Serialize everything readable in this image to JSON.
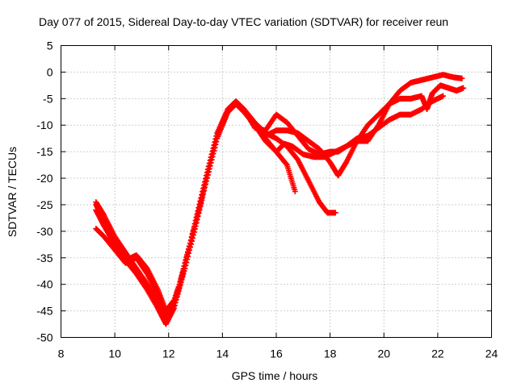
{
  "chart_data": {
    "type": "scatter",
    "title": "Day 077 of 2015, Sidereal Day-to-day VTEC variation (SDTVAR) for receiver reun",
    "xlabel": "GPS time / hours",
    "ylabel": "SDTVAR / TECUs",
    "xlim": [
      8,
      24
    ],
    "ylim": [
      -50,
      5
    ],
    "xticks": [
      8,
      10,
      12,
      14,
      16,
      18,
      20,
      22,
      24
    ],
    "yticks": [
      5,
      0,
      -5,
      -10,
      -15,
      -20,
      -25,
      -30,
      -35,
      -40,
      -45,
      -50
    ],
    "grid": true,
    "marker": "+",
    "color": "#ff0000",
    "series": [
      {
        "x": [
          9.3,
          9.6,
          10.0,
          10.4,
          10.8,
          11.2,
          11.6,
          11.9,
          12.2,
          12.6,
          13.0,
          13.4,
          13.8,
          14.2,
          14.5,
          14.8,
          15.2,
          15.6,
          16.0,
          16.4,
          16.7
        ],
        "y": [
          -24.5,
          -27,
          -31,
          -34,
          -37,
          -40,
          -43,
          -46.5,
          -44,
          -37,
          -29,
          -20,
          -12,
          -7.5,
          -6,
          -7,
          -10,
          -12.5,
          -15,
          -17.5,
          -22.5
        ]
      },
      {
        "x": [
          9.3,
          9.6,
          10.0,
          10.4,
          10.8,
          11.2,
          11.6,
          11.9,
          12.2,
          12.6,
          13.0,
          13.4,
          13.8,
          14.2,
          14.5,
          14.8,
          15.2,
          15.6,
          16.0,
          16.4,
          16.8,
          17.2,
          17.6,
          17.9,
          18.2
        ],
        "y": [
          -26,
          -29,
          -32.5,
          -35.5,
          -38,
          -41,
          -44.5,
          -47.5,
          -44.5,
          -37,
          -29,
          -20.5,
          -12.5,
          -7.5,
          -6,
          -7,
          -9.5,
          -11.5,
          -12.5,
          -14,
          -16.5,
          -20.5,
          -24.5,
          -26.5,
          -26.5
        ]
      },
      {
        "x": [
          9.3,
          9.6,
          10.0,
          10.4,
          10.8,
          11.2,
          11.6,
          11.9,
          12.2,
          12.6,
          13.0,
          13.4,
          13.8,
          14.2,
          14.5,
          14.8,
          15.2,
          15.6,
          16.0,
          16.3,
          16.6,
          17.0,
          17.4,
          17.8,
          18.2,
          18.6,
          19.0,
          19.4,
          19.8,
          20.2,
          20.6,
          21.0,
          21.4,
          21.8,
          22.2,
          22.6,
          22.9
        ],
        "y": [
          -25,
          -28,
          -32,
          -34.5,
          -37,
          -40,
          -43.5,
          -46.5,
          -44,
          -36,
          -28.5,
          -20,
          -12,
          -7,
          -6,
          -7.5,
          -10,
          -13,
          -15,
          -13.5,
          -14,
          -15.5,
          -16,
          -16,
          -15,
          -14,
          -13,
          -13,
          -10,
          -6,
          -3.5,
          -2,
          -1.5,
          -1,
          -0.5,
          -1,
          -1.2
        ]
      },
      {
        "x": [
          9.3,
          9.6,
          10.0,
          10.4,
          10.8,
          11.2,
          11.6,
          11.9,
          12.2,
          12.6,
          13.0,
          13.4,
          13.8,
          14.2,
          14.5,
          14.8,
          15.2,
          15.6,
          16.0,
          16.4,
          16.8,
          17.2,
          17.6,
          18.0,
          18.3,
          18.6,
          19.0,
          19.4,
          19.8,
          20.2,
          20.6,
          21.0,
          21.4,
          21.8,
          22.2
        ],
        "y": [
          -29.5,
          -31,
          -33.5,
          -36,
          -35,
          -38,
          -42,
          -46,
          -43.5,
          -36.5,
          -28,
          -19.5,
          -11.5,
          -7,
          -5.5,
          -7,
          -10.5,
          -11,
          -8,
          -9.5,
          -12,
          -14.5,
          -15.5,
          -15,
          -15,
          -14,
          -12.5,
          -12,
          -10.5,
          -9,
          -8,
          -8,
          -7,
          -5.5,
          -4.5
        ]
      },
      {
        "x": [
          9.3,
          9.6,
          10.0,
          10.4,
          10.8,
          11.2,
          11.6,
          11.9,
          12.2,
          12.6,
          13.0,
          13.4,
          13.8,
          14.2,
          14.5,
          14.8,
          15.2,
          15.6,
          16.0,
          16.4,
          16.8,
          17.2,
          17.6,
          18.0,
          18.3,
          18.6,
          19.0,
          19.4,
          19.8,
          20.2,
          20.6,
          21.0,
          21.4,
          21.6,
          21.8,
          22.1,
          22.4,
          22.7,
          22.95
        ],
        "y": [
          -26,
          -28.5,
          -33,
          -35.5,
          -34.5,
          -37,
          -41,
          -45,
          -43,
          -37,
          -29,
          -20.5,
          -12.5,
          -7.5,
          -6,
          -7.5,
          -10,
          -12,
          -11,
          -11,
          -11.5,
          -13,
          -14.5,
          -17,
          -19.5,
          -17,
          -13,
          -10,
          -8,
          -6,
          -5,
          -5,
          -4.5,
          -7,
          -4,
          -2.5,
          -3,
          -3.5,
          -3
        ]
      }
    ]
  }
}
